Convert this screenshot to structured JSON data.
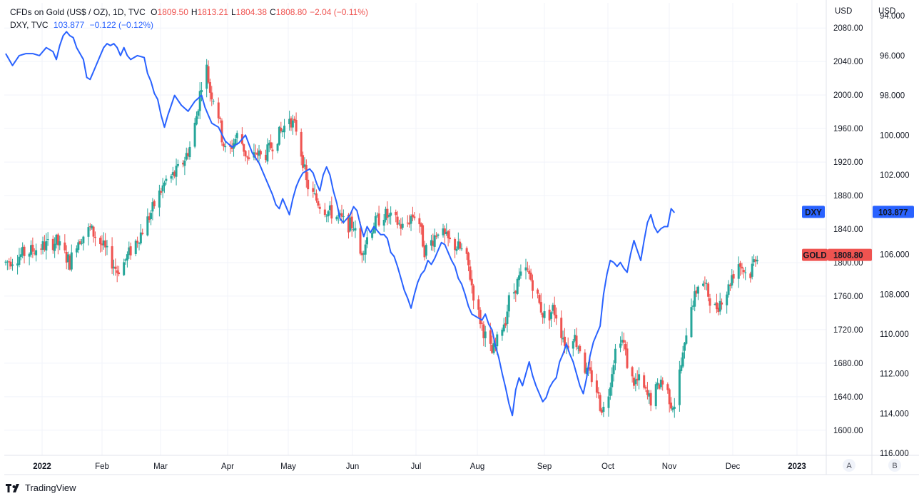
{
  "legend": {
    "line1": {
      "symbol": "CFDs on Gold (US$ / OZ), 1D, TVC",
      "open_label": "O",
      "open": "1809.50",
      "high_label": "H",
      "high": "1813.21",
      "low_label": "L",
      "low": "1804.38",
      "close_label": "C",
      "close": "1808.80",
      "change": "−2.04 (−0.11%)"
    },
    "line2": {
      "symbol": "DXY, TVC",
      "value": "103.877",
      "change": "−0.122 (−0.12%)"
    }
  },
  "scale_buttons": {
    "a": "A",
    "b": "B"
  },
  "footer": {
    "brand": "TradingView"
  },
  "colors": {
    "up": "#26a69a",
    "down": "#ef5350",
    "dxy": "#2962ff",
    "grid": "#f0f3fa",
    "axis": "#e0e3eb"
  },
  "chart_data": {
    "type": "candlestick+line",
    "x_ticks": [
      "2022",
      "Feb",
      "Mar",
      "Apr",
      "May",
      "Jun",
      "Jul",
      "Aug",
      "Sep",
      "Oct",
      "Nov",
      "Dec",
      "2023"
    ],
    "gold_axis": {
      "unit": "USD",
      "ticks": [
        "2080.00",
        "2040.00",
        "2000.00",
        "1960.00",
        "1920.00",
        "1880.00",
        "1840.00",
        "1800.00",
        "1760.00",
        "1720.00",
        "1680.00",
        "1640.00",
        "1600.00"
      ],
      "range": [
        1570,
        2110
      ]
    },
    "dxy_axis": {
      "unit": "USD",
      "ticks": [
        "94.000",
        "96.000",
        "98.000",
        "100.000",
        "102.000",
        "104.000",
        "106.000",
        "108.000",
        "110.000",
        "112.000",
        "114.000",
        "116.000"
      ],
      "range": [
        116.1,
        93.35
      ],
      "inverted": true
    },
    "gold_series": {
      "name": "GOLD",
      "last": 1808.8,
      "last_label": "1808.80",
      "keypoints": [
        [
          0,
          1800
        ],
        [
          10,
          1810
        ],
        [
          20,
          1818
        ],
        [
          30,
          1825
        ],
        [
          38,
          1800
        ],
        [
          42,
          1825
        ],
        [
          50,
          1840
        ],
        [
          58,
          1818
        ],
        [
          66,
          1790
        ],
        [
          70,
          1800
        ],
        [
          75,
          1818
        ],
        [
          80,
          1835
        ],
        [
          85,
          1855
        ],
        [
          90,
          1878
        ],
        [
          95,
          1898
        ],
        [
          100,
          1905
        ],
        [
          105,
          1920
        ],
        [
          110,
          1942
        ],
        [
          113,
          1975
        ],
        [
          116,
          2015
        ],
        [
          118,
          2045
        ],
        [
          121,
          2005
        ],
        [
          125,
          1990
        ],
        [
          128,
          1950
        ],
        [
          131,
          1925
        ],
        [
          134,
          1940
        ],
        [
          138,
          1955
        ],
        [
          142,
          1930
        ],
        [
          145,
          1915
        ],
        [
          148,
          1932
        ],
        [
          152,
          1925
        ],
        [
          156,
          1935
        ],
        [
          160,
          1948
        ],
        [
          164,
          1958
        ],
        [
          168,
          1975
        ],
        [
          170,
          1965
        ],
        [
          172,
          1960
        ],
        [
          174,
          1940
        ],
        [
          176,
          1922
        ],
        [
          178,
          1895
        ],
        [
          182,
          1880
        ],
        [
          186,
          1870
        ],
        [
          190,
          1862
        ],
        [
          194,
          1858
        ],
        [
          198,
          1852
        ],
        [
          202,
          1845
        ],
        [
          206,
          1845
        ],
        [
          208,
          1825
        ],
        [
          210,
          1810
        ],
        [
          213,
          1825
        ],
        [
          216,
          1840
        ],
        [
          220,
          1850
        ],
        [
          224,
          1858
        ],
        [
          228,
          1852
        ],
        [
          232,
          1848
        ],
        [
          236,
          1840
        ],
        [
          240,
          1855
        ],
        [
          244,
          1860
        ],
        [
          246,
          1835
        ],
        [
          248,
          1815
        ],
        [
          250,
          1818
        ],
        [
          253,
          1828
        ],
        [
          256,
          1840
        ],
        [
          260,
          1830
        ],
        [
          264,
          1822
        ],
        [
          268,
          1818
        ],
        [
          272,
          1810
        ],
        [
          274,
          1795
        ],
        [
          276,
          1773
        ],
        [
          278,
          1752
        ],
        [
          280,
          1738
        ],
        [
          282,
          1725
        ],
        [
          284,
          1712
        ],
        [
          286,
          1700
        ],
        [
          288,
          1692
        ],
        [
          290,
          1700
        ],
        [
          292,
          1712
        ],
        [
          294,
          1725
        ],
        [
          296,
          1733
        ],
        [
          298,
          1755
        ],
        [
          300,
          1760
        ],
        [
          302,
          1772
        ],
        [
          304,
          1780
        ],
        [
          306,
          1785
        ],
        [
          308,
          1790
        ],
        [
          310,
          1785
        ],
        [
          312,
          1775
        ],
        [
          314,
          1765
        ],
        [
          316,
          1750
        ],
        [
          318,
          1740
        ],
        [
          320,
          1733
        ],
        [
          322,
          1738
        ],
        [
          324,
          1745
        ],
        [
          326,
          1738
        ],
        [
          328,
          1722
        ],
        [
          330,
          1712
        ],
        [
          332,
          1700
        ],
        [
          334,
          1708
        ],
        [
          336,
          1715
        ],
        [
          338,
          1705
        ],
        [
          340,
          1698
        ],
        [
          342,
          1680
        ],
        [
          344,
          1668
        ],
        [
          346,
          1665
        ],
        [
          348,
          1660
        ],
        [
          350,
          1648
        ],
        [
          352,
          1630
        ],
        [
          354,
          1625
        ],
        [
          356,
          1632
        ],
        [
          358,
          1660
        ],
        [
          360,
          1685
        ],
        [
          362,
          1705
        ],
        [
          364,
          1712
        ],
        [
          366,
          1702
        ],
        [
          368,
          1680
        ],
        [
          370,
          1662
        ],
        [
          372,
          1658
        ],
        [
          374,
          1658
        ],
        [
          376,
          1660
        ],
        [
          378,
          1648
        ],
        [
          380,
          1640
        ],
        [
          382,
          1636
        ],
        [
          384,
          1645
        ],
        [
          386,
          1650
        ],
        [
          388,
          1660
        ],
        [
          390,
          1652
        ],
        [
          392,
          1645
        ],
        [
          394,
          1632
        ],
        [
          396,
          1632
        ],
        [
          398,
          1658
        ],
        [
          400,
          1678
        ],
        [
          402,
          1698
        ],
        [
          404,
          1740
        ],
        [
          406,
          1752
        ],
        [
          408,
          1758
        ],
        [
          410,
          1775
        ],
        [
          412,
          1780
        ],
        [
          414,
          1772
        ],
        [
          416,
          1762
        ],
        [
          418,
          1752
        ],
        [
          420,
          1745
        ],
        [
          422,
          1750
        ],
        [
          424,
          1758
        ],
        [
          426,
          1762
        ],
        [
          428,
          1770
        ],
        [
          430,
          1785
        ],
        [
          432,
          1790
        ],
        [
          434,
          1800
        ],
        [
          436,
          1795
        ],
        [
          438,
          1788
        ],
        [
          440,
          1780
        ],
        [
          442,
          1795
        ],
        [
          444,
          1808
        ],
        [
          446,
          1812
        ],
        [
          447,
          1808.8
        ]
      ]
    },
    "dxy_series": {
      "name": "DXY",
      "last": 103.877,
      "last_label": "103.877",
      "keypoints": [
        [
          0,
          95.9
        ],
        [
          4,
          96.5
        ],
        [
          8,
          96.0
        ],
        [
          12,
          95.9
        ],
        [
          16,
          95.9
        ],
        [
          20,
          96.0
        ],
        [
          24,
          95.6
        ],
        [
          28,
          95.8
        ],
        [
          30,
          96.2
        ],
        [
          32,
          95.5
        ],
        [
          34,
          95.0
        ],
        [
          36,
          94.8
        ],
        [
          38,
          95.0
        ],
        [
          40,
          95.1
        ],
        [
          42,
          95.6
        ],
        [
          46,
          96.2
        ],
        [
          48,
          97.1
        ],
        [
          50,
          97.2
        ],
        [
          52,
          96.8
        ],
        [
          56,
          96.0
        ],
        [
          58,
          95.6
        ],
        [
          60,
          95.4
        ],
        [
          62,
          95.5
        ],
        [
          64,
          95.4
        ],
        [
          66,
          95.6
        ],
        [
          68,
          96.0
        ],
        [
          70,
          95.6
        ],
        [
          72,
          96.0
        ],
        [
          74,
          96.2
        ],
        [
          78,
          96.0
        ],
        [
          82,
          96.1
        ],
        [
          84,
          96.9
        ],
        [
          86,
          97.3
        ],
        [
          88,
          97.9
        ],
        [
          90,
          98.2
        ],
        [
          92,
          99.0
        ],
        [
          94,
          99.6
        ],
        [
          96,
          99.0
        ],
        [
          98,
          98.5
        ],
        [
          100,
          98.0
        ],
        [
          104,
          98.5
        ],
        [
          108,
          98.8
        ],
        [
          112,
          98.3
        ],
        [
          116,
          98.0
        ],
        [
          118,
          98.6
        ],
        [
          120,
          99.0
        ],
        [
          122,
          99.4
        ],
        [
          126,
          99.6
        ],
        [
          130,
          100.3
        ],
        [
          134,
          100.6
        ],
        [
          138,
          100.4
        ],
        [
          142,
          100.0
        ],
        [
          146,
          100.9
        ],
        [
          150,
          101.4
        ],
        [
          154,
          102.2
        ],
        [
          158,
          103.0
        ],
        [
          160,
          103.5
        ],
        [
          162,
          103.7
        ],
        [
          164,
          103.2
        ],
        [
          166,
          103.6
        ],
        [
          168,
          104.0
        ],
        [
          170,
          103.2
        ],
        [
          172,
          102.6
        ],
        [
          174,
          102.2
        ],
        [
          176,
          101.9
        ],
        [
          178,
          101.8
        ],
        [
          180,
          101.7
        ],
        [
          182,
          101.9
        ],
        [
          184,
          102.4
        ],
        [
          186,
          102.8
        ],
        [
          188,
          102.0
        ],
        [
          190,
          101.6
        ],
        [
          192,
          102.0
        ],
        [
          194,
          102.8
        ],
        [
          196,
          103.4
        ],
        [
          198,
          104.2
        ],
        [
          200,
          104.4
        ],
        [
          202,
          104.2
        ],
        [
          204,
          104.0
        ],
        [
          206,
          103.6
        ],
        [
          208,
          103.8
        ],
        [
          210,
          104.5
        ],
        [
          212,
          105.1
        ],
        [
          214,
          104.6
        ],
        [
          216,
          104.9
        ],
        [
          218,
          104.6
        ],
        [
          220,
          104.8
        ],
        [
          222,
          105.0
        ],
        [
          224,
          105.0
        ],
        [
          226,
          105.2
        ],
        [
          228,
          105.9
        ],
        [
          230,
          106.1
        ],
        [
          232,
          106.6
        ],
        [
          234,
          107.2
        ],
        [
          236,
          107.8
        ],
        [
          238,
          108.2
        ],
        [
          240,
          108.7
        ],
        [
          242,
          108.0
        ],
        [
          244,
          107.4
        ],
        [
          246,
          107.0
        ],
        [
          248,
          106.8
        ],
        [
          250,
          106.3
        ],
        [
          252,
          106.5
        ],
        [
          254,
          106.2
        ],
        [
          256,
          105.8
        ],
        [
          258,
          105.4
        ],
        [
          260,
          105.5
        ],
        [
          262,
          105.9
        ],
        [
          264,
          106.3
        ],
        [
          266,
          106.6
        ],
        [
          268,
          107.2
        ],
        [
          270,
          107.5
        ],
        [
          272,
          108.0
        ],
        [
          274,
          108.6
        ],
        [
          276,
          109.0
        ],
        [
          278,
          109.1
        ],
        [
          280,
          109.2
        ],
        [
          282,
          109.3
        ],
        [
          284,
          109.0
        ],
        [
          286,
          109.5
        ],
        [
          288,
          109.8
        ],
        [
          290,
          110.6
        ],
        [
          292,
          111.2
        ],
        [
          294,
          112.0
        ],
        [
          296,
          112.7
        ],
        [
          298,
          113.5
        ],
        [
          300,
          114.1
        ],
        [
          302,
          112.8
        ],
        [
          304,
          112.2
        ],
        [
          306,
          112.6
        ],
        [
          308,
          112.0
        ],
        [
          310,
          111.4
        ],
        [
          312,
          112.1
        ],
        [
          314,
          112.6
        ],
        [
          316,
          113.0
        ],
        [
          318,
          113.4
        ],
        [
          320,
          113.2
        ],
        [
          322,
          112.7
        ],
        [
          324,
          112.4
        ],
        [
          326,
          112.2
        ],
        [
          328,
          111.4
        ],
        [
          330,
          111.0
        ],
        [
          332,
          110.5
        ],
        [
          334,
          111.0
        ],
        [
          336,
          111.4
        ],
        [
          338,
          112.0
        ],
        [
          340,
          112.6
        ],
        [
          342,
          113.0
        ],
        [
          344,
          112.2
        ],
        [
          346,
          111.1
        ],
        [
          348,
          110.4
        ],
        [
          350,
          110.0
        ],
        [
          352,
          109.6
        ],
        [
          354,
          108.0
        ],
        [
          356,
          107.0
        ],
        [
          358,
          106.3
        ],
        [
          360,
          106.4
        ],
        [
          362,
          106.6
        ],
        [
          364,
          106.4
        ],
        [
          366,
          106.7
        ],
        [
          368,
          106.9
        ],
        [
          370,
          106.0
        ],
        [
          372,
          105.3
        ],
        [
          374,
          105.8
        ],
        [
          376,
          106.3
        ],
        [
          378,
          105.3
        ],
        [
          380,
          104.4
        ],
        [
          382,
          104.0
        ],
        [
          384,
          104.6
        ],
        [
          386,
          104.9
        ],
        [
          388,
          104.7
        ],
        [
          390,
          104.6
        ],
        [
          392,
          104.6
        ],
        [
          394,
          103.7
        ],
        [
          396,
          103.9
        ]
      ]
    }
  }
}
